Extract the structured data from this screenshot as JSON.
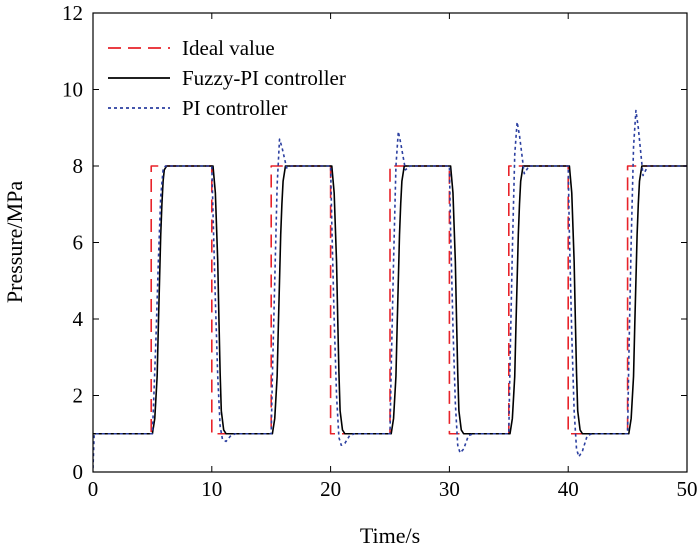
{
  "chart_data": {
    "type": "line",
    "title": "",
    "xlabel": "Time/s",
    "ylabel": "Pressure/MPa",
    "xlim": [
      0,
      50
    ],
    "ylim": [
      0,
      12
    ],
    "xticks": [
      "0",
      "10",
      "20",
      "30",
      "40",
      "50"
    ],
    "yticks": [
      "0",
      "2",
      "4",
      "6",
      "8",
      "10",
      "12"
    ],
    "grid": false,
    "legend_position": "top-left",
    "series": [
      {
        "name": "Ideal value",
        "color": "#e8232a",
        "style": "dashed",
        "x": [
          0,
          4.9,
          4.9,
          10,
          10,
          15,
          15,
          20,
          20,
          25,
          25,
          30,
          30,
          35,
          35,
          40,
          40,
          45,
          45,
          50
        ],
        "y": [
          1,
          1,
          8,
          8,
          1,
          1,
          8,
          8,
          1,
          1,
          8,
          8,
          1,
          1,
          8,
          8,
          1,
          1,
          8,
          8
        ]
      },
      {
        "name": "Fuzzy-PI controller",
        "color": "#000000",
        "style": "solid",
        "x": [
          0,
          5.0,
          5.2,
          5.4,
          5.5,
          5.6,
          5.7,
          5.8,
          5.9,
          6.0,
          6.2,
          10.1,
          10.3,
          10.5,
          10.6,
          10.7,
          10.8,
          11.0,
          11.2,
          15.1,
          15.3,
          15.5,
          15.6,
          15.7,
          15.8,
          15.9,
          16.0,
          16.2,
          20.1,
          20.3,
          20.5,
          20.6,
          20.7,
          20.8,
          21.0,
          21.2,
          25.1,
          25.3,
          25.5,
          25.6,
          25.7,
          25.8,
          25.9,
          26.0,
          26.2,
          30.1,
          30.3,
          30.5,
          30.6,
          30.7,
          30.8,
          31.0,
          31.2,
          35.1,
          35.3,
          35.5,
          35.6,
          35.7,
          35.8,
          35.9,
          36.0,
          36.2,
          40.1,
          40.3,
          40.5,
          40.6,
          40.7,
          40.8,
          41.0,
          41.2,
          45.1,
          45.3,
          45.5,
          45.6,
          45.7,
          45.8,
          45.9,
          46.0,
          46.2,
          50
        ],
        "y": [
          1,
          1,
          1.4,
          2.5,
          3.8,
          5.0,
          6.2,
          7.0,
          7.6,
          7.9,
          8,
          8,
          7.3,
          5.5,
          4.0,
          2.6,
          1.6,
          1.1,
          1,
          1,
          1.4,
          2.5,
          3.8,
          5.0,
          6.2,
          7.0,
          7.6,
          8,
          8,
          7.3,
          5.5,
          4.0,
          2.6,
          1.6,
          1.1,
          1,
          1,
          1.4,
          2.5,
          3.8,
          5.0,
          6.2,
          7.0,
          7.6,
          8,
          8,
          7.3,
          5.5,
          4.0,
          2.6,
          1.6,
          1.1,
          1,
          1,
          1.4,
          2.5,
          3.8,
          5.0,
          6.2,
          7.0,
          7.6,
          8,
          8,
          7.3,
          5.5,
          4.0,
          2.6,
          1.6,
          1.1,
          1,
          1,
          1.4,
          2.5,
          3.8,
          5.0,
          6.2,
          7.0,
          7.6,
          8,
          8
        ]
      },
      {
        "name": "PI controller",
        "color": "#2b3fa0",
        "style": "dotted",
        "x": [
          0,
          0.1,
          0.3,
          5.0,
          5.1,
          5.3,
          5.5,
          5.7,
          5.9,
          6.1,
          6.4,
          10.0,
          10.1,
          10.3,
          10.5,
          10.7,
          10.9,
          11.2,
          11.6,
          12.0,
          15.0,
          15.1,
          15.3,
          15.5,
          15.7,
          15.9,
          16.3,
          16.7,
          20.0,
          20.1,
          20.3,
          20.5,
          20.7,
          20.9,
          21.2,
          21.6,
          22.0,
          25.0,
          25.1,
          25.3,
          25.5,
          25.7,
          25.9,
          26.3,
          26.7,
          30.0,
          30.1,
          30.3,
          30.5,
          30.7,
          30.9,
          31.2,
          31.6,
          32.0,
          35.0,
          35.1,
          35.3,
          35.5,
          35.7,
          35.9,
          36.3,
          36.7,
          40.0,
          40.1,
          40.3,
          40.5,
          40.7,
          40.9,
          41.2,
          41.6,
          42.0,
          45.0,
          45.1,
          45.3,
          45.5,
          45.7,
          45.9,
          46.3,
          46.7,
          50
        ],
        "y": [
          0.1,
          1.0,
          1,
          1,
          1.8,
          3.5,
          5.5,
          7.2,
          7.9,
          8.0,
          8,
          8,
          6.8,
          4.5,
          2.5,
          1.2,
          0.85,
          0.8,
          0.95,
          1,
          1,
          2.5,
          5.0,
          7.5,
          8.7,
          8.5,
          7.95,
          8,
          8,
          6.5,
          4.0,
          2.0,
          0.9,
          0.7,
          0.75,
          0.95,
          1,
          1,
          2.7,
          5.5,
          8.0,
          8.9,
          8.6,
          7.9,
          8,
          8,
          6.3,
          3.8,
          1.8,
          0.7,
          0.5,
          0.6,
          0.95,
          1,
          1,
          2.8,
          5.8,
          8.3,
          9.15,
          8.8,
          7.8,
          8,
          8,
          6.2,
          3.6,
          1.6,
          0.6,
          0.4,
          0.55,
          0.95,
          1,
          1,
          2.9,
          6.0,
          8.5,
          9.45,
          9.0,
          7.75,
          8,
          8
        ]
      }
    ]
  }
}
